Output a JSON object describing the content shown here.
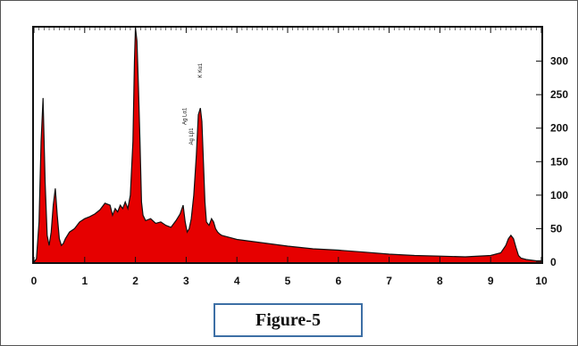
{
  "caption": "Figure-5",
  "chart_data": {
    "type": "area",
    "xlim": [
      0,
      10
    ],
    "ylim": [
      0,
      350
    ],
    "x_ticks": [
      0,
      1,
      2,
      3,
      4,
      5,
      6,
      7,
      8,
      9,
      10
    ],
    "y_ticks": [
      0,
      50,
      100,
      150,
      200,
      250,
      300
    ],
    "y_axis_side": "right",
    "grid": false,
    "fill_color": "#e60000",
    "line_color": "#111111",
    "series": [
      {
        "x": [
          0.0,
          0.05,
          0.1,
          0.14,
          0.18,
          0.22,
          0.26,
          0.3,
          0.34,
          0.38,
          0.42,
          0.46,
          0.5,
          0.54,
          0.58,
          0.62,
          0.7,
          0.8,
          0.9,
          1.0,
          1.1,
          1.2,
          1.3,
          1.4,
          1.5,
          1.55,
          1.6,
          1.65,
          1.7,
          1.75,
          1.8,
          1.85,
          1.9,
          1.95,
          1.98,
          2.0,
          2.03,
          2.06,
          2.09,
          2.12,
          2.15,
          2.2,
          2.3,
          2.4,
          2.5,
          2.6,
          2.7,
          2.8,
          2.88,
          2.94,
          2.98,
          3.02,
          3.06,
          3.1,
          3.15,
          3.2,
          3.24,
          3.28,
          3.31,
          3.34,
          3.37,
          3.4,
          3.45,
          3.5,
          3.54,
          3.58,
          3.62,
          3.66,
          3.7,
          3.8,
          3.9,
          4.0,
          4.2,
          4.4,
          4.6,
          4.8,
          5.0,
          5.5,
          6.0,
          6.5,
          7.0,
          7.5,
          8.0,
          8.5,
          9.0,
          9.2,
          9.3,
          9.35,
          9.4,
          9.45,
          9.5,
          9.55,
          9.6,
          9.7,
          9.8,
          9.9,
          10.0
        ],
        "y": [
          0,
          5,
          60,
          180,
          245,
          120,
          40,
          25,
          45,
          85,
          110,
          70,
          35,
          25,
          28,
          35,
          45,
          50,
          60,
          65,
          68,
          72,
          78,
          88,
          85,
          70,
          80,
          75,
          85,
          80,
          90,
          80,
          100,
          180,
          300,
          350,
          330,
          260,
          180,
          90,
          70,
          62,
          65,
          58,
          60,
          55,
          52,
          62,
          72,
          85,
          60,
          45,
          50,
          65,
          100,
          160,
          220,
          230,
          210,
          150,
          90,
          60,
          55,
          65,
          60,
          50,
          45,
          42,
          40,
          38,
          36,
          34,
          32,
          30,
          28,
          26,
          24,
          20,
          18,
          15,
          12,
          10,
          9,
          8,
          10,
          14,
          25,
          35,
          40,
          35,
          22,
          10,
          6,
          4,
          3,
          2,
          2
        ]
      }
    ],
    "peak_labels": [
      "Ag Lα1",
      "Ag Lβ1",
      "K Kα1"
    ]
  }
}
